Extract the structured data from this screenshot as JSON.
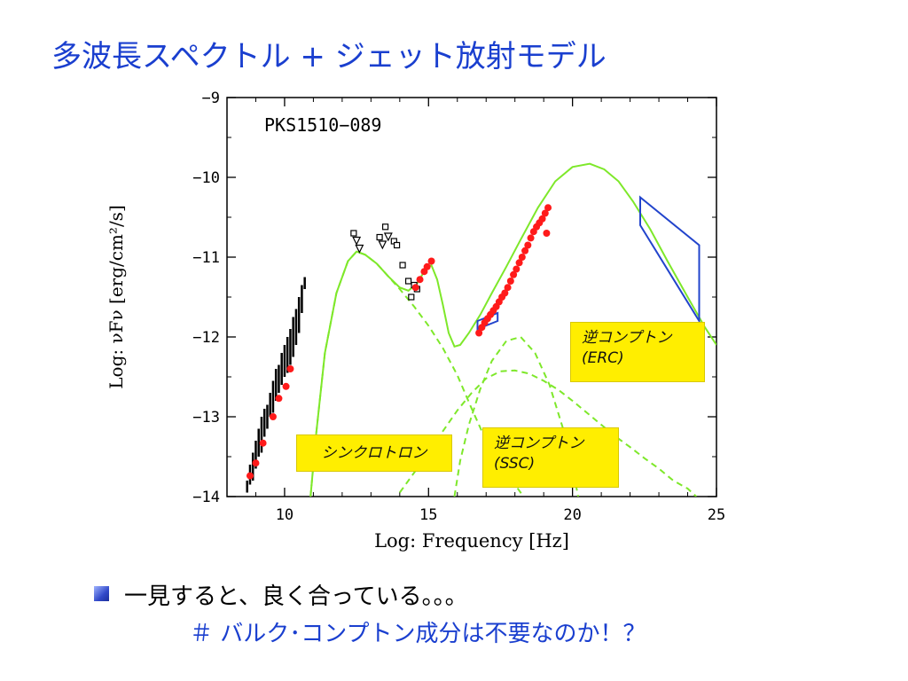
{
  "slide": {
    "title": "多波長スペクトル + ジェット放射モデル",
    "bullet_text": "一見すると、良く合っている。。。",
    "sub_text": "＃ バルク･コンプトン成分は不要なのか！？"
  },
  "colors": {
    "title": "#1a3fcf",
    "model_curve": "#7ee82a",
    "data_points": "#ff1a1a",
    "bowtie": "#2244cc",
    "note_bg": "#ffee00",
    "archival": "#000000"
  },
  "annotations": {
    "synchrotron": "シンクロトロン",
    "erc_line1": "逆コンプトン",
    "erc_line2": "(ERC)",
    "ssc_line1": "逆コンプトン",
    "ssc_line2": "(SSC)"
  },
  "chart_data": {
    "type": "line",
    "title": "PKS1510−089",
    "xlabel": "Log: Frequency [Hz]",
    "ylabel": "Log: νFν [erg/cm²/s]",
    "xlim": [
      8,
      25
    ],
    "ylim": [
      -14,
      -9
    ],
    "xticks": [
      10,
      15,
      20,
      25
    ],
    "yticks": [
      -14,
      -13,
      -12,
      -11,
      -10,
      -9
    ],
    "ytick_labels": [
      "−14",
      "−13",
      "−12",
      "−11",
      "−10",
      "−9"
    ],
    "grid": false,
    "series": [
      {
        "style": "solid",
        "x": [
          10.9,
          11.1,
          11.4,
          11.8,
          12.2,
          12.5,
          12.8,
          13.2,
          13.6,
          14.0,
          14.3,
          14.6,
          14.9,
          15.1,
          15.3,
          15.5,
          15.7,
          15.9,
          16.1,
          16.4,
          16.8,
          17.2,
          17.7,
          18.2,
          18.8,
          19.4,
          20.0,
          20.6,
          21.1,
          21.6,
          22.1,
          22.7,
          23.3,
          24.0,
          24.6,
          25.0
        ],
        "y": [
          -14.0,
          -13.2,
          -12.2,
          -11.45,
          -11.05,
          -10.93,
          -10.97,
          -11.08,
          -11.24,
          -11.38,
          -11.42,
          -11.33,
          -11.15,
          -11.1,
          -11.28,
          -11.6,
          -11.95,
          -12.12,
          -12.1,
          -11.95,
          -11.72,
          -11.45,
          -11.12,
          -10.78,
          -10.38,
          -10.05,
          -9.87,
          -9.83,
          -9.9,
          -10.05,
          -10.3,
          -10.65,
          -11.05,
          -11.5,
          -11.88,
          -12.1
        ]
      },
      {
        "style": "dashed",
        "x": [
          10.9,
          11.1,
          11.4,
          11.8,
          12.2,
          12.5,
          12.8,
          13.2,
          13.6,
          14.0,
          14.5,
          15.0,
          15.5,
          16.0,
          16.5,
          17.0,
          17.5,
          18.0,
          18.3
        ],
        "y": [
          -14.0,
          -13.2,
          -12.2,
          -11.45,
          -11.05,
          -10.93,
          -10.97,
          -11.08,
          -11.24,
          -11.4,
          -11.62,
          -11.86,
          -12.14,
          -12.48,
          -12.9,
          -13.3,
          -13.6,
          -13.85,
          -14.0
        ]
      },
      {
        "style": "dashed",
        "x": [
          14.0,
          14.5,
          15.0,
          15.5,
          16.0,
          16.5,
          17.0,
          17.5,
          18.0,
          18.5,
          19.0,
          19.5,
          20.0,
          20.5,
          21.0,
          21.5,
          22.0,
          22.5,
          23.0,
          23.5,
          24.0,
          24.3
        ],
        "y": [
          -13.95,
          -13.7,
          -13.45,
          -13.18,
          -12.92,
          -12.7,
          -12.52,
          -12.43,
          -12.42,
          -12.46,
          -12.55,
          -12.66,
          -12.8,
          -12.95,
          -13.1,
          -13.25,
          -13.38,
          -13.52,
          -13.65,
          -13.8,
          -13.9,
          -14.0
        ]
      },
      {
        "style": "dashed",
        "x": [
          15.9,
          16.1,
          16.4,
          16.8,
          17.2,
          17.7,
          18.2,
          18.7,
          19.2,
          19.8,
          20.2
        ],
        "y": [
          -14.0,
          -13.55,
          -13.1,
          -12.65,
          -12.3,
          -12.05,
          -12.0,
          -12.2,
          -12.6,
          -13.3,
          -14.0
        ]
      }
    ],
    "red_points": {
      "x": [
        8.8,
        9.0,
        9.25,
        9.6,
        9.8,
        10.05,
        10.2,
        14.55,
        14.7,
        14.85,
        14.95,
        15.1,
        16.75,
        16.85,
        16.95,
        17.05,
        17.15,
        17.25,
        17.35,
        17.45,
        17.55,
        17.65,
        17.75,
        17.85,
        17.95,
        18.05,
        18.15,
        18.25,
        18.35,
        18.45,
        18.55,
        18.65,
        18.75,
        18.85,
        18.95,
        19.05,
        19.1,
        19.15
      ],
      "y": [
        -13.74,
        -13.58,
        -13.33,
        -13.0,
        -12.77,
        -12.62,
        -12.4,
        -11.38,
        -11.28,
        -11.18,
        -11.12,
        -11.05,
        -11.95,
        -11.88,
        -11.82,
        -11.77,
        -11.72,
        -11.67,
        -11.62,
        -11.56,
        -11.5,
        -11.45,
        -11.38,
        -11.3,
        -11.22,
        -11.15,
        -11.07,
        -11.0,
        -10.92,
        -10.85,
        -10.76,
        -10.68,
        -10.62,
        -10.57,
        -10.52,
        -10.45,
        -10.7,
        -10.38
      ]
    },
    "archival_boxes": {
      "x": [
        12.4,
        13.3,
        13.5,
        13.8,
        13.9,
        14.1,
        14.3,
        14.5,
        14.6,
        14.4
      ],
      "y": [
        -10.7,
        -10.75,
        -10.62,
        -10.8,
        -10.85,
        -11.1,
        -11.3,
        -11.35,
        -11.4,
        -11.5
      ]
    },
    "archival_limits": {
      "x": [
        12.5,
        12.6,
        13.4,
        13.6
      ],
      "y": [
        -10.75,
        -10.85,
        -10.8,
        -10.7
      ]
    },
    "radio_bars": {
      "x": [
        8.7,
        8.8,
        8.9,
        9.0,
        9.1,
        9.2,
        9.3,
        9.4,
        9.5,
        9.6,
        9.7,
        9.8,
        9.9,
        10.0,
        10.1,
        10.2,
        10.3,
        10.4,
        10.5,
        10.6,
        10.7
      ],
      "ylo": [
        -13.95,
        -13.85,
        -13.8,
        -13.65,
        -13.5,
        -13.45,
        -13.25,
        -13.15,
        -13.0,
        -12.95,
        -12.8,
        -12.7,
        -12.6,
        -12.5,
        -12.45,
        -12.35,
        -12.25,
        -12.1,
        -11.95,
        -11.7,
        -11.4
      ],
      "yhi": [
        -13.8,
        -13.6,
        -13.45,
        -13.3,
        -13.15,
        -13.0,
        -12.9,
        -12.85,
        -12.7,
        -12.55,
        -12.4,
        -12.35,
        -12.2,
        -12.1,
        -12.0,
        -11.9,
        -11.75,
        -11.65,
        -11.5,
        -11.35,
        -11.25
      ]
    },
    "bowties": [
      {
        "x": [
          16.7,
          16.7,
          17.4,
          17.4
        ],
        "y": [
          -11.8,
          -11.9,
          -11.8,
          -11.7
        ]
      },
      {
        "x": [
          22.35,
          24.4,
          24.4,
          22.35
        ],
        "y": [
          -10.25,
          -10.85,
          -11.8,
          -10.6
        ]
      }
    ]
  }
}
